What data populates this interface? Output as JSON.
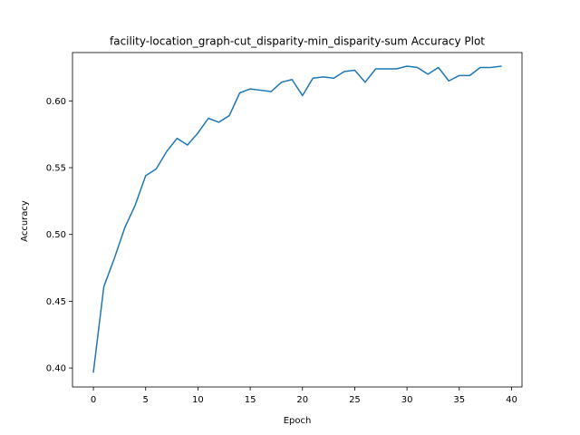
{
  "chart_data": {
    "type": "line",
    "title": "facility-location_graph-cut_disparity-min_disparity-sum Accuracy Plot",
    "xlabel": "Epoch",
    "ylabel": "Accuracy",
    "xlim": [
      -2.0,
      41.0
    ],
    "ylim": [
      0.3858,
      0.6362
    ],
    "xticks": [
      0,
      5,
      10,
      15,
      20,
      25,
      30,
      35,
      40
    ],
    "yticks": [
      0.4,
      0.45,
      0.5,
      0.55,
      0.6
    ],
    "ytick_labels": [
      "0.40",
      "0.45",
      "0.50",
      "0.55",
      "0.60"
    ],
    "grid": false,
    "line_color": "#1f77b4",
    "series": [
      {
        "x": [
          0,
          1,
          2,
          3,
          4,
          5,
          6,
          7,
          8,
          9,
          10,
          11,
          12,
          13,
          14,
          15,
          16,
          17,
          18,
          19,
          20,
          21,
          22,
          23,
          24,
          25,
          26,
          27,
          28,
          29,
          30,
          31,
          32,
          33,
          34,
          35,
          36,
          37,
          38,
          39
        ],
        "values": [
          0.397,
          0.461,
          0.482,
          0.505,
          0.522,
          0.544,
          0.549,
          0.562,
          0.572,
          0.567,
          0.576,
          0.587,
          0.584,
          0.589,
          0.606,
          0.609,
          0.608,
          0.607,
          0.614,
          0.616,
          0.604,
          0.617,
          0.618,
          0.617,
          0.622,
          0.623,
          0.614,
          0.624,
          0.624,
          0.624,
          0.626,
          0.625,
          0.62,
          0.625,
          0.615,
          0.619,
          0.619,
          0.625,
          0.625,
          0.626
        ]
      }
    ]
  }
}
